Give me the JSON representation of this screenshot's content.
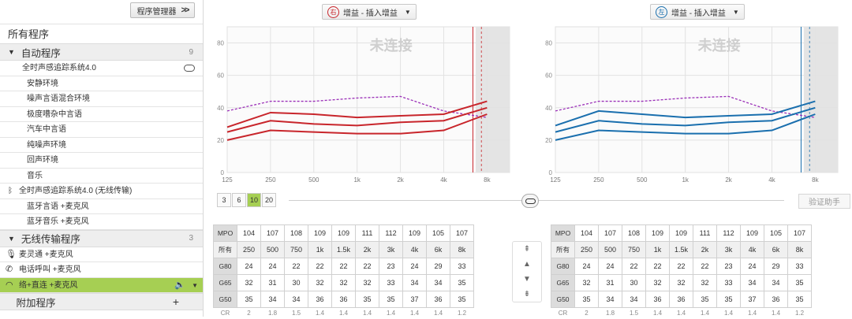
{
  "sidebar": {
    "program_manager_label": "程序管理器",
    "chevron_label": ">>",
    "all_programs": "所有程序",
    "auto": {
      "title": "自动程序",
      "count": "9",
      "parent": "全时声感追踪系统4.0",
      "children": [
        "安静环境",
        "噪声言语混合环境",
        "极度嘈杂中言语",
        "汽车中言语",
        "纯噪声环境",
        "回声环境",
        "音乐"
      ],
      "bt_parent": "全时声感追踪系统4.0 (无线传输)",
      "bt_children": [
        "蓝牙言语 +麦克风",
        "蓝牙音乐 +麦克风"
      ]
    },
    "wireless": {
      "title": "无线传输程序",
      "count": "3",
      "items": [
        "麦灵通 +麦克风",
        "电话呼叫 +麦克风",
        "络+直连 +麦克风"
      ]
    },
    "extra": {
      "title": "附加程序",
      "add": "+"
    }
  },
  "right_panel": {
    "side_label": "右",
    "dropdown": "增益 - 插入增益",
    "status": "未连接",
    "color": "#c8252b"
  },
  "left_panel": {
    "side_label": "左",
    "dropdown": "增益 - 插入增益",
    "status": "未连接",
    "color": "#1a6fae"
  },
  "controls": {
    "scale_buttons": [
      "3",
      "6",
      "10",
      "20"
    ],
    "selected_scale": "10",
    "verify_button": "验证助手"
  },
  "chart_data": [
    {
      "type": "line",
      "title": "",
      "x": [
        "125",
        "250",
        "500",
        "1k",
        "2k",
        "4k",
        "8k"
      ],
      "ylim": [
        0,
        90
      ],
      "yticks": [
        0,
        20,
        40,
        60,
        80
      ],
      "series": [
        {
          "values": [
            38,
            44,
            44,
            46,
            47,
            38,
            34
          ]
        },
        {
          "values": [
            28,
            37,
            36,
            34,
            35,
            36,
            44
          ]
        },
        {
          "values": [
            25,
            32,
            30,
            29,
            31,
            32,
            40
          ]
        },
        {
          "values": [
            20,
            26,
            25,
            24,
            24,
            26,
            36
          ]
        }
      ]
    },
    {
      "type": "line",
      "title": "",
      "x": [
        "125",
        "250",
        "500",
        "1k",
        "2k",
        "4k",
        "8k"
      ],
      "ylim": [
        0,
        90
      ],
      "yticks": [
        0,
        20,
        40,
        60,
        80
      ],
      "series": [
        {
          "values": [
            38,
            44,
            44,
            46,
            47,
            38,
            34
          ]
        },
        {
          "values": [
            29,
            38,
            36,
            34,
            35,
            36,
            44
          ]
        },
        {
          "values": [
            25,
            32,
            30,
            29,
            31,
            32,
            40
          ]
        },
        {
          "values": [
            20,
            26,
            25,
            24,
            24,
            26,
            36
          ]
        }
      ]
    }
  ],
  "tables": {
    "right": {
      "rows": [
        [
          "MPO",
          "104",
          "107",
          "108",
          "109",
          "109",
          "111",
          "112",
          "109",
          "105",
          "107"
        ],
        [
          "所有",
          "250",
          "500",
          "750",
          "1k",
          "1.5k",
          "2k",
          "3k",
          "4k",
          "6k",
          "8k"
        ],
        [
          "G80",
          "24",
          "24",
          "22",
          "22",
          "22",
          "22",
          "23",
          "24",
          "29",
          "33"
        ],
        [
          "G65",
          "32",
          "31",
          "30",
          "32",
          "32",
          "32",
          "33",
          "34",
          "34",
          "35"
        ],
        [
          "G50",
          "35",
          "34",
          "34",
          "36",
          "36",
          "35",
          "35",
          "37",
          "36",
          "35"
        ],
        [
          "CR",
          "2",
          "1.8",
          "1.5",
          "1.4",
          "1.4",
          "1.4",
          "1.4",
          "1.4",
          "1.4",
          "1.2"
        ]
      ]
    },
    "left": {
      "rows": [
        [
          "MPO",
          "104",
          "107",
          "108",
          "109",
          "109",
          "111",
          "112",
          "109",
          "105",
          "107"
        ],
        [
          "所有",
          "250",
          "500",
          "750",
          "1k",
          "1.5k",
          "2k",
          "3k",
          "4k",
          "6k",
          "8k"
        ],
        [
          "G80",
          "24",
          "24",
          "22",
          "22",
          "22",
          "22",
          "23",
          "24",
          "29",
          "33"
        ],
        [
          "G65",
          "32",
          "31",
          "30",
          "32",
          "32",
          "32",
          "33",
          "34",
          "34",
          "35"
        ],
        [
          "G50",
          "35",
          "34",
          "34",
          "36",
          "36",
          "35",
          "35",
          "37",
          "36",
          "35"
        ],
        [
          "CR",
          "2",
          "1.8",
          "1.5",
          "1.4",
          "1.4",
          "1.4",
          "1.4",
          "1.4",
          "1.4",
          "1.2"
        ]
      ]
    }
  }
}
